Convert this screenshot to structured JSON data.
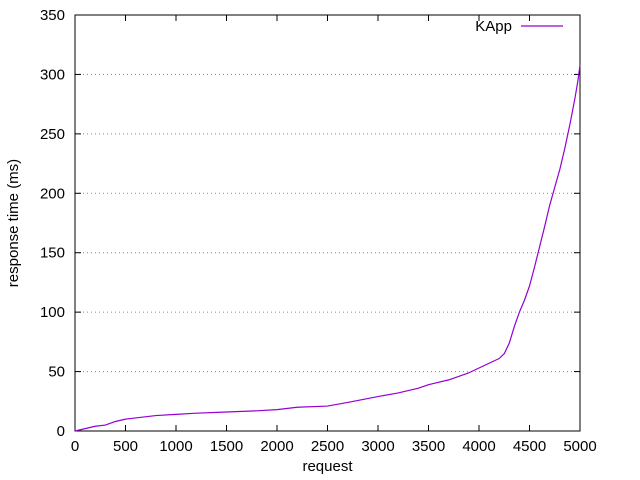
{
  "chart_data": {
    "type": "line",
    "xlabel": "request",
    "ylabel": "response time (ms)",
    "xlim": [
      0,
      5000
    ],
    "ylim": [
      0,
      350
    ],
    "x_ticks": [
      "0",
      "500",
      "1000",
      "1500",
      "2000",
      "2500",
      "3000",
      "3500",
      "4000",
      "4500",
      "5000"
    ],
    "y_ticks": [
      "0",
      "50",
      "100",
      "150",
      "200",
      "250",
      "300",
      "350"
    ],
    "grid": "horizontal dotted",
    "legend_position": "top-right",
    "series": [
      {
        "name": "KApp",
        "color": "#9400d3",
        "x": [
          0,
          100,
          200,
          300,
          400,
          500,
          600,
          800,
          1000,
          1200,
          1500,
          1800,
          2000,
          2200,
          2500,
          2700,
          3000,
          3200,
          3400,
          3500,
          3700,
          3900,
          4000,
          4100,
          4200,
          4250,
          4300,
          4350,
          4400,
          4450,
          4500,
          4550,
          4600,
          4650,
          4700,
          4750,
          4800,
          4850,
          4900,
          4950,
          4980,
          5000
        ],
        "y": [
          0,
          2,
          4,
          5,
          8,
          10,
          11,
          13,
          14,
          15,
          16,
          17,
          18,
          20,
          21,
          24,
          29,
          32,
          36,
          39,
          43,
          49,
          53,
          57,
          61,
          65,
          74,
          88,
          100,
          110,
          122,
          138,
          155,
          172,
          190,
          205,
          220,
          238,
          258,
          280,
          295,
          308
        ]
      }
    ]
  }
}
